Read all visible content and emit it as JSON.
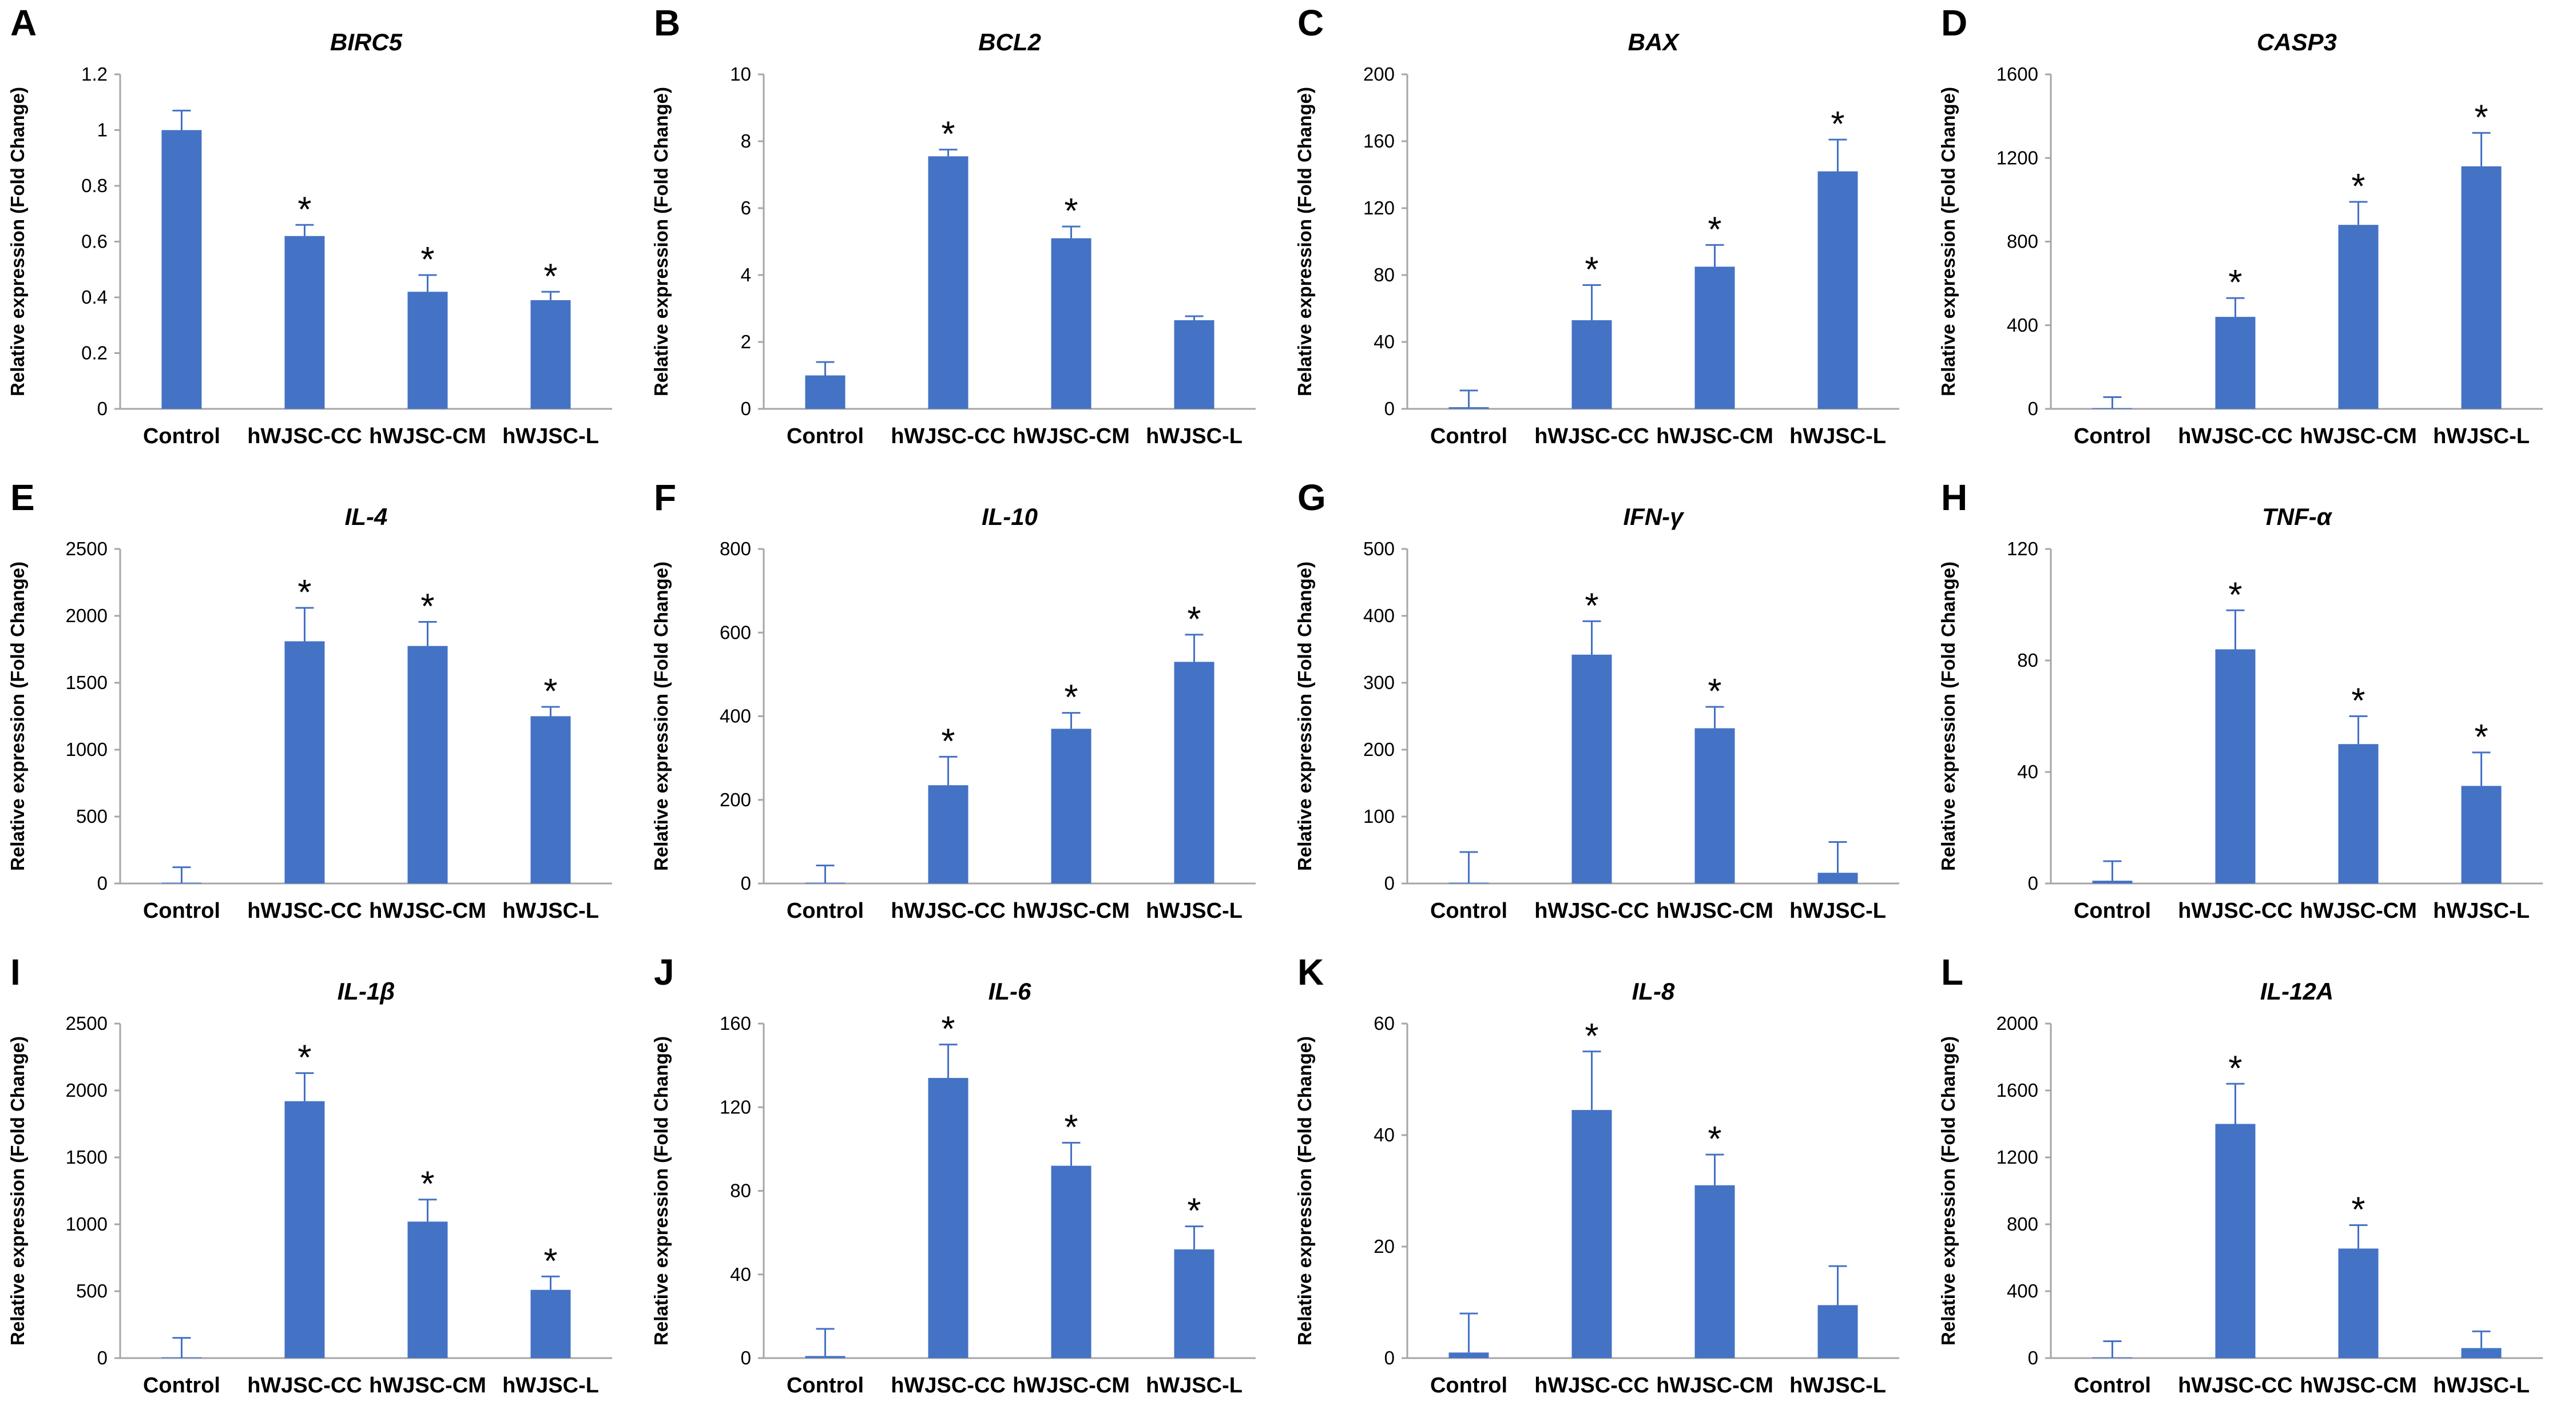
{
  "figure": {
    "colors": {
      "bar": "#4472c4",
      "axis": "#a6a6a6",
      "text": "#000000"
    },
    "significance_marker": "*",
    "categories": [
      "Control",
      "hWJSC-CC",
      "hWJSC-CM",
      "hWJSC-L"
    ]
  },
  "chart_data": [
    {
      "panel": "A",
      "type": "bar",
      "title": "BIRC5",
      "xlabel": "",
      "ylabel": "Relative expression (Fold Change)",
      "categories": [
        "Control",
        "hWJSC-CC",
        "hWJSC-CM",
        "hWJSC-L"
      ],
      "values": [
        1.0,
        0.62,
        0.42,
        0.39
      ],
      "errors": [
        0.07,
        0.04,
        0.06,
        0.03
      ],
      "significant": [
        false,
        true,
        true,
        true
      ],
      "ylim": [
        0,
        1.2
      ],
      "yticks": [
        0,
        0.2,
        0.4,
        0.6,
        0.8,
        1,
        1.2
      ],
      "ytick_labels": [
        "0",
        "0.2",
        "0.4",
        "0.6",
        "0.8",
        "1",
        "1.2"
      ]
    },
    {
      "panel": "B",
      "type": "bar",
      "title": "BCL2",
      "xlabel": "",
      "ylabel": "Relative expression (Fold Change)",
      "categories": [
        "Control",
        "hWJSC-CC",
        "hWJSC-CM",
        "hWJSC-L"
      ],
      "values": [
        1.0,
        7.55,
        5.1,
        2.65
      ],
      "errors": [
        0.4,
        0.2,
        0.35,
        0.12
      ],
      "significant": [
        false,
        true,
        true,
        false
      ],
      "ylim": [
        0,
        10
      ],
      "yticks": [
        0,
        2,
        4,
        6,
        8,
        10
      ],
      "ytick_labels": [
        "0",
        "2",
        "4",
        "6",
        "8",
        "10"
      ]
    },
    {
      "panel": "C",
      "type": "bar",
      "title": "BAX",
      "xlabel": "",
      "ylabel": "Relative expression (Fold Change)",
      "categories": [
        "Control",
        "hWJSC-CC",
        "hWJSC-CM",
        "hWJSC-L"
      ],
      "values": [
        1,
        53,
        85,
        142
      ],
      "errors": [
        10,
        21,
        13,
        19
      ],
      "significant": [
        false,
        true,
        true,
        true
      ],
      "ylim": [
        0,
        200
      ],
      "yticks": [
        0,
        40,
        80,
        120,
        160,
        200
      ],
      "ytick_labels": [
        "0",
        "40",
        "80",
        "120",
        "160",
        "200"
      ]
    },
    {
      "panel": "D",
      "type": "bar",
      "title": "CASP3",
      "xlabel": "",
      "ylabel": "Relative expression (Fold Change)",
      "categories": [
        "Control",
        "hWJSC-CC",
        "hWJSC-CM",
        "hWJSC-L"
      ],
      "values": [
        1,
        440,
        880,
        1160
      ],
      "errors": [
        55,
        90,
        110,
        160
      ],
      "significant": [
        false,
        true,
        true,
        true
      ],
      "ylim": [
        0,
        1600
      ],
      "yticks": [
        0,
        400,
        800,
        1200,
        1600
      ],
      "ytick_labels": [
        "0",
        "400",
        "800",
        "1200",
        "1600"
      ]
    },
    {
      "panel": "E",
      "type": "bar",
      "title": "IL-4",
      "xlabel": "",
      "ylabel": "Relative expression (Fold Change)",
      "categories": [
        "Control",
        "hWJSC-CC",
        "hWJSC-CM",
        "hWJSC-L"
      ],
      "values": [
        1,
        1810,
        1775,
        1250
      ],
      "errors": [
        120,
        250,
        180,
        70
      ],
      "significant": [
        false,
        true,
        true,
        true
      ],
      "ylim": [
        0,
        2500
      ],
      "yticks": [
        0,
        500,
        1000,
        1500,
        2000,
        2500
      ],
      "ytick_labels": [
        "0",
        "500",
        "1000",
        "1500",
        "2000",
        "2500"
      ]
    },
    {
      "panel": "F",
      "type": "bar",
      "title": "IL-10",
      "xlabel": "",
      "ylabel": "Relative expression (Fold Change)",
      "categories": [
        "Control",
        "hWJSC-CC",
        "hWJSC-CM",
        "hWJSC-L"
      ],
      "values": [
        1,
        235,
        370,
        530
      ],
      "errors": [
        42,
        68,
        38,
        65
      ],
      "significant": [
        false,
        true,
        true,
        true
      ],
      "ylim": [
        0,
        800
      ],
      "yticks": [
        0,
        200,
        400,
        600,
        800
      ],
      "ytick_labels": [
        "0",
        "200",
        "400",
        "600",
        "800"
      ]
    },
    {
      "panel": "G",
      "type": "bar",
      "title": "IFN-γ",
      "xlabel": "",
      "ylabel": "Relative expression (Fold Change)",
      "categories": [
        "Control",
        "hWJSC-CC",
        "hWJSC-CM",
        "hWJSC-L"
      ],
      "values": [
        1,
        342,
        232,
        16
      ],
      "errors": [
        46,
        50,
        32,
        46
      ],
      "significant": [
        false,
        true,
        true,
        false
      ],
      "ylim": [
        0,
        500
      ],
      "yticks": [
        0,
        100,
        200,
        300,
        400,
        500
      ],
      "ytick_labels": [
        "0",
        "100",
        "200",
        "300",
        "400",
        "500"
      ]
    },
    {
      "panel": "H",
      "type": "bar",
      "title": "TNF-α",
      "xlabel": "",
      "ylabel": "Relative expression (Fold Change)",
      "categories": [
        "Control",
        "hWJSC-CC",
        "hWJSC-CM",
        "hWJSC-L"
      ],
      "values": [
        1,
        84,
        50,
        35
      ],
      "errors": [
        7,
        14,
        10,
        12
      ],
      "significant": [
        false,
        true,
        true,
        true
      ],
      "ylim": [
        0,
        120
      ],
      "yticks": [
        0,
        40,
        80,
        120
      ],
      "ytick_labels": [
        "0",
        "40",
        "80",
        "120"
      ]
    },
    {
      "panel": "I",
      "type": "bar",
      "title": "IL-1β",
      "xlabel": "",
      "ylabel": "Relative expression (Fold Change)",
      "categories": [
        "Control",
        "hWJSC-CC",
        "hWJSC-CM",
        "hWJSC-L"
      ],
      "values": [
        1,
        1920,
        1020,
        510
      ],
      "errors": [
        150,
        210,
        165,
        100
      ],
      "significant": [
        false,
        true,
        true,
        true
      ],
      "ylim": [
        0,
        2500
      ],
      "yticks": [
        0,
        500,
        1000,
        1500,
        2000,
        2500
      ],
      "ytick_labels": [
        "0",
        "500",
        "1000",
        "1500",
        "2000",
        "2500"
      ]
    },
    {
      "panel": "J",
      "type": "bar",
      "title": "IL-6",
      "xlabel": "",
      "ylabel": "Relative expression (Fold Change)",
      "categories": [
        "Control",
        "hWJSC-CC",
        "hWJSC-CM",
        "hWJSC-L"
      ],
      "values": [
        1,
        134,
        92,
        52
      ],
      "errors": [
        13,
        16,
        11,
        11
      ],
      "significant": [
        false,
        true,
        true,
        true
      ],
      "ylim": [
        0,
        160
      ],
      "yticks": [
        0,
        40,
        80,
        120,
        160
      ],
      "ytick_labels": [
        "0",
        "40",
        "80",
        "120",
        "160"
      ]
    },
    {
      "panel": "K",
      "type": "bar",
      "title": "IL-8",
      "xlabel": "",
      "ylabel": "Relative expression (Fold Change)",
      "categories": [
        "Control",
        "hWJSC-CC",
        "hWJSC-CM",
        "hWJSC-L"
      ],
      "values": [
        1,
        44.5,
        31,
        9.5
      ],
      "errors": [
        7,
        10.5,
        5.5,
        7
      ],
      "significant": [
        false,
        true,
        true,
        false
      ],
      "ylim": [
        0,
        60
      ],
      "yticks": [
        0,
        20,
        40,
        60
      ],
      "ytick_labels": [
        "0",
        "20",
        "40",
        "60"
      ]
    },
    {
      "panel": "L",
      "type": "bar",
      "title": "IL-12A",
      "xlabel": "",
      "ylabel": "Relative expression (Fold Change)",
      "categories": [
        "Control",
        "hWJSC-CC",
        "hWJSC-CM",
        "hWJSC-L"
      ],
      "values": [
        1,
        1400,
        655,
        60
      ],
      "errors": [
        100,
        240,
        140,
        100
      ],
      "significant": [
        false,
        true,
        true,
        false
      ],
      "ylim": [
        0,
        2000
      ],
      "yticks": [
        0,
        400,
        800,
        1200,
        1600,
        2000
      ],
      "ytick_labels": [
        "0",
        "400",
        "800",
        "1200",
        "1600",
        "2000"
      ]
    }
  ]
}
